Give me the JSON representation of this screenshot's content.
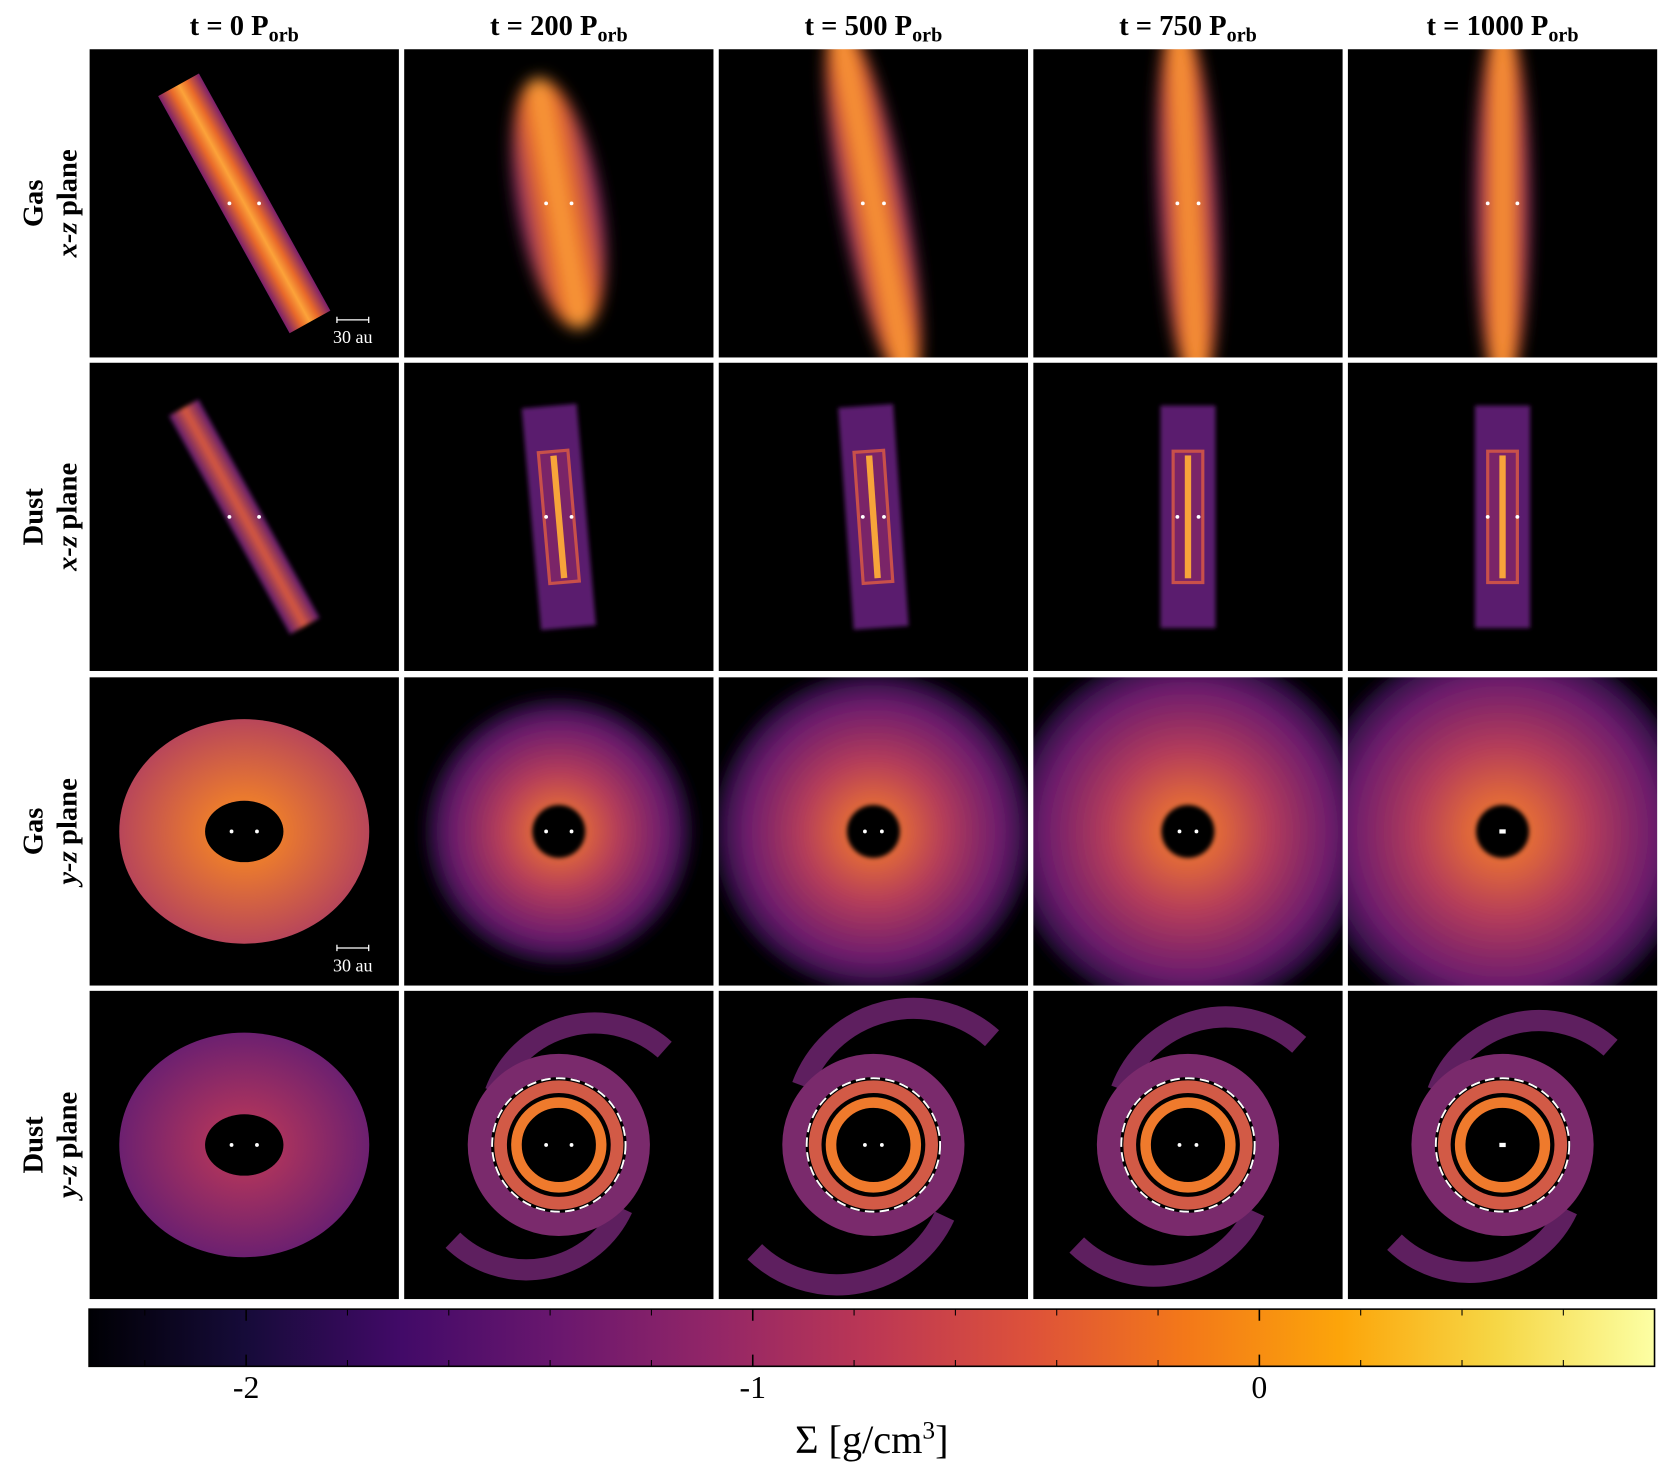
{
  "figure": {
    "columns": [
      {
        "main": "t = 0 P",
        "sub": "orb"
      },
      {
        "main": "t = 200 P",
        "sub": "orb"
      },
      {
        "main": "t = 500 P",
        "sub": "orb"
      },
      {
        "main": "t = 750 P",
        "sub": "orb"
      },
      {
        "main": "t = 1000 P",
        "sub": "orb"
      }
    ],
    "rows": [
      {
        "species": "Gas",
        "axes": "x-z",
        "word": "plane"
      },
      {
        "species": "Dust",
        "axes": "x-z",
        "word": "plane"
      },
      {
        "species": "Gas",
        "axes": "y-z",
        "word": "plane"
      },
      {
        "species": "Dust",
        "axes": "y-z",
        "word": "plane"
      }
    ],
    "scale_bar_labels": [
      "30 au",
      "30 au"
    ],
    "colorbar": {
      "label": {
        "main": "Σ [g/cm",
        "sup": "3",
        "end": "]"
      },
      "lim": [
        -2.31,
        0.78
      ],
      "ticks": [
        -2,
        -1,
        0
      ],
      "minor_ticks": [
        -2.2,
        -1.8,
        -1.6,
        -1.4,
        -1.2,
        -0.8,
        -0.6,
        -0.4,
        -0.2,
        0.2,
        0.4,
        0.6
      ]
    }
  }
}
